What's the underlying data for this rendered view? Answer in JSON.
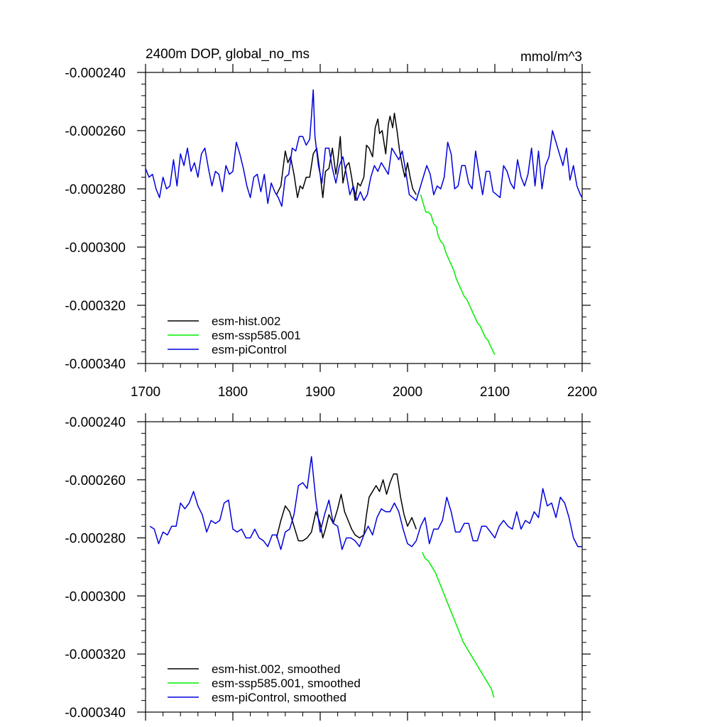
{
  "figure": {
    "title_left": "2400m DOP, global_no_ms",
    "title_right": "mmol/m^3"
  },
  "chart_data": [
    {
      "type": "line",
      "title": "2400m DOP, global_no_ms",
      "units": "mmol/m^3",
      "xlim": [
        1700,
        2200
      ],
      "ylim": [
        -0.00034,
        -0.00024
      ],
      "x_ticks": [
        1700,
        1800,
        1900,
        2000,
        2100,
        2200
      ],
      "x_tick_labels": [
        "1700",
        "1800",
        "1900",
        "2000",
        "2100",
        "2200"
      ],
      "y_ticks": [
        -0.00024,
        -0.00026,
        -0.00028,
        -0.0003,
        -0.00032,
        -0.00034
      ],
      "y_tick_labels": [
        "-0.000240",
        "-0.000260",
        "-0.000280",
        "-0.000300",
        "-0.000320",
        "-0.000340"
      ],
      "grid": false,
      "legend_position": "bottom-left",
      "series": [
        {
          "name": "esm-hist.002",
          "color": "#000000",
          "x": [
            1850,
            1855,
            1860,
            1863,
            1866,
            1870,
            1874,
            1877,
            1880,
            1884,
            1888,
            1892,
            1896,
            1900,
            1903,
            1906,
            1910,
            1914,
            1918,
            1920,
            1923,
            1926,
            1930,
            1933,
            1936,
            1940,
            1943,
            1946,
            1950,
            1953,
            1956,
            1960,
            1963,
            1966,
            1968,
            1971,
            1975,
            1978,
            1980,
            1983,
            1985,
            1988,
            1991,
            1994,
            1997,
            2000,
            2003,
            2006,
            2010
          ],
          "y": [
            -0.000282,
            -0.000279,
            -0.000267,
            -0.000271,
            -0.000269,
            -0.000275,
            -0.000283,
            -0.000279,
            -0.00028,
            -0.000276,
            -0.000276,
            -0.000268,
            -0.000266,
            -0.000275,
            -0.000283,
            -0.000274,
            -0.000273,
            -0.000266,
            -0.000275,
            -0.000271,
            -0.000262,
            -0.000278,
            -0.000272,
            -0.000271,
            -0.000276,
            -0.000284,
            -0.000278,
            -0.000279,
            -0.000276,
            -0.000265,
            -0.000266,
            -0.000269,
            -0.000259,
            -0.000256,
            -0.000261,
            -0.00026,
            -0.000268,
            -0.000258,
            -0.000255,
            -0.000259,
            -0.000254,
            -0.00026,
            -0.000267,
            -0.000272,
            -0.000276,
            -0.000271,
            -0.000276,
            -0.00028,
            -0.000282
          ]
        },
        {
          "name": "esm-ssp585.001",
          "color": "#00ee00",
          "x": [
            2015,
            2018,
            2021,
            2024,
            2027,
            2030,
            2033,
            2035,
            2038,
            2041,
            2044,
            2047,
            2050,
            2053,
            2056,
            2059,
            2062,
            2065,
            2068,
            2071,
            2074,
            2077,
            2080,
            2083,
            2086,
            2089,
            2092,
            2095,
            2100
          ],
          "y": [
            -0.000282,
            -0.000285,
            -0.000288,
            -0.000288,
            -0.000289,
            -0.000292,
            -0.000293,
            -0.000296,
            -0.000298,
            -0.000299,
            -0.000302,
            -0.000304,
            -0.000306,
            -0.000308,
            -0.000311,
            -0.000313,
            -0.000315,
            -0.000317,
            -0.000318,
            -0.00032,
            -0.000322,
            -0.000324,
            -0.000326,
            -0.000327,
            -0.000329,
            -0.000331,
            -0.000332,
            -0.000334,
            -0.000337
          ]
        },
        {
          "name": "esm-piControl",
          "color": "#0000dd",
          "x": [
            1700,
            1704,
            1708,
            1712,
            1716,
            1720,
            1724,
            1728,
            1732,
            1736,
            1740,
            1744,
            1748,
            1752,
            1756,
            1760,
            1764,
            1768,
            1772,
            1776,
            1780,
            1784,
            1788,
            1792,
            1796,
            1800,
            1804,
            1808,
            1812,
            1816,
            1820,
            1824,
            1828,
            1832,
            1836,
            1840,
            1844,
            1848,
            1852,
            1856,
            1860,
            1864,
            1868,
            1872,
            1876,
            1880,
            1884,
            1888,
            1890,
            1892,
            1894,
            1898,
            1902,
            1906,
            1910,
            1914,
            1918,
            1922,
            1926,
            1930,
            1934,
            1938,
            1942,
            1946,
            1950,
            1954,
            1958,
            1962,
            1966,
            1970,
            1974,
            1978,
            1982,
            1986,
            1990,
            1994,
            1998,
            2002,
            2006,
            2010,
            2014,
            2018,
            2022,
            2026,
            2030,
            2034,
            2038,
            2042,
            2046,
            2050,
            2054,
            2058,
            2062,
            2066,
            2070,
            2074,
            2078,
            2082,
            2086,
            2090,
            2094,
            2098,
            2102,
            2106,
            2110,
            2114,
            2118,
            2122,
            2126,
            2130,
            2134,
            2138,
            2142,
            2146,
            2150,
            2154,
            2158,
            2162,
            2166,
            2170,
            2174,
            2178,
            2182,
            2186,
            2190,
            2194,
            2198,
            2200
          ],
          "y": [
            -0.000273,
            -0.000276,
            -0.000275,
            -0.00028,
            -0.000283,
            -0.000276,
            -0.00028,
            -0.000279,
            -0.00027,
            -0.000279,
            -0.000268,
            -0.000272,
            -0.000266,
            -0.000274,
            -0.000271,
            -0.000276,
            -0.000268,
            -0.000266,
            -0.000273,
            -0.000279,
            -0.000274,
            -0.000275,
            -0.000281,
            -0.000272,
            -0.000275,
            -0.000274,
            -0.000264,
            -0.000268,
            -0.000273,
            -0.000279,
            -0.000283,
            -0.000276,
            -0.000275,
            -0.000281,
            -0.000275,
            -0.000285,
            -0.000278,
            -0.000281,
            -0.000283,
            -0.000286,
            -0.000276,
            -0.000275,
            -0.000266,
            -0.000267,
            -0.000262,
            -0.000262,
            -0.000265,
            -0.000263,
            -0.000255,
            -0.000246,
            -0.000262,
            -0.000272,
            -0.000278,
            -0.000266,
            -0.000266,
            -0.000273,
            -0.000278,
            -0.000272,
            -0.000269,
            -0.000275,
            -0.000282,
            -0.000279,
            -0.000284,
            -0.000281,
            -0.000284,
            -0.000282,
            -0.000276,
            -0.000272,
            -0.000274,
            -0.000271,
            -0.000273,
            -0.000275,
            -0.000266,
            -0.000268,
            -0.00027,
            -0.000267,
            -0.000274,
            -0.000282,
            -0.000283,
            -0.000284,
            -0.00028,
            -0.000276,
            -0.000272,
            -0.000275,
            -0.000282,
            -0.000279,
            -0.00028,
            -0.000276,
            -0.000264,
            -0.000268,
            -0.00028,
            -0.000279,
            -0.000272,
            -0.000272,
            -0.000278,
            -0.00028,
            -0.000267,
            -0.000275,
            -0.000282,
            -0.000274,
            -0.000274,
            -0.000281,
            -0.000282,
            -0.000283,
            -0.000272,
            -0.000274,
            -0.000278,
            -0.00028,
            -0.00027,
            -0.000276,
            -0.000279,
            -0.000275,
            -0.000266,
            -0.000279,
            -0.000267,
            -0.00028,
            -0.000272,
            -0.000269,
            -0.00026,
            -0.000264,
            -0.000268,
            -0.000272,
            -0.000266,
            -0.000277,
            -0.000272,
            -0.000279,
            -0.000282,
            -0.000283
          ]
        }
      ]
    },
    {
      "type": "line",
      "xlim": [
        1700,
        2200
      ],
      "ylim": [
        -0.00034,
        -0.00024
      ],
      "y_ticks": [
        -0.00024,
        -0.00026,
        -0.00028,
        -0.0003,
        -0.00032,
        -0.00034
      ],
      "y_tick_labels": [
        "-0.000240",
        "-0.000260",
        "-0.000280",
        "-0.000300",
        "-0.000320",
        "-0.000340"
      ],
      "grid": false,
      "legend_position": "bottom-left",
      "series": [
        {
          "name": "esm-hist.002, smoothed",
          "color": "#000000",
          "x": [
            1850,
            1855,
            1860,
            1865,
            1870,
            1875,
            1880,
            1885,
            1890,
            1895,
            1900,
            1903,
            1906,
            1910,
            1915,
            1920,
            1924,
            1928,
            1932,
            1936,
            1940,
            1945,
            1950,
            1953,
            1956,
            1960,
            1964,
            1968,
            1972,
            1976,
            1980,
            1984,
            1988,
            1992,
            1996,
            2000,
            2005,
            2010
          ],
          "y": [
            -0.00028,
            -0.000274,
            -0.000269,
            -0.000271,
            -0.000276,
            -0.000281,
            -0.000281,
            -0.00028,
            -0.000278,
            -0.000271,
            -0.000275,
            -0.00028,
            -0.000277,
            -0.000272,
            -0.000275,
            -0.00027,
            -0.000265,
            -0.000271,
            -0.000274,
            -0.000277,
            -0.000279,
            -0.00028,
            -0.000279,
            -0.000272,
            -0.000266,
            -0.000264,
            -0.000262,
            -0.000264,
            -0.00026,
            -0.000265,
            -0.000261,
            -0.000258,
            -0.000258,
            -0.000266,
            -0.000272,
            -0.000276,
            -0.000273,
            -0.000277
          ]
        },
        {
          "name": "esm-ssp585.001, smoothed",
          "color": "#00ee00",
          "x": [
            2017,
            2020,
            2024,
            2028,
            2032,
            2036,
            2040,
            2044,
            2048,
            2052,
            2056,
            2060,
            2064,
            2068,
            2072,
            2076,
            2080,
            2084,
            2088,
            2092,
            2096,
            2099
          ],
          "y": [
            -0.000285,
            -0.000287,
            -0.000288,
            -0.00029,
            -0.000292,
            -0.000295,
            -0.000298,
            -0.000301,
            -0.000304,
            -0.000307,
            -0.00031,
            -0.000313,
            -0.000316,
            -0.000318,
            -0.00032,
            -0.000322,
            -0.000324,
            -0.000326,
            -0.000328,
            -0.00033,
            -0.000332,
            -0.000335
          ]
        },
        {
          "name": "esm-piControl, smoothed",
          "color": "#0000dd",
          "x": [
            1705,
            1710,
            1715,
            1720,
            1725,
            1730,
            1735,
            1740,
            1745,
            1750,
            1755,
            1760,
            1765,
            1770,
            1775,
            1780,
            1785,
            1790,
            1795,
            1800,
            1805,
            1810,
            1815,
            1820,
            1825,
            1830,
            1835,
            1840,
            1845,
            1850,
            1855,
            1860,
            1865,
            1870,
            1875,
            1880,
            1885,
            1890,
            1895,
            1900,
            1905,
            1910,
            1915,
            1920,
            1925,
            1930,
            1935,
            1940,
            1945,
            1950,
            1955,
            1960,
            1965,
            1970,
            1975,
            1980,
            1985,
            1990,
            1995,
            2000,
            2005,
            2010,
            2015,
            2020,
            2025,
            2030,
            2035,
            2040,
            2045,
            2050,
            2055,
            2060,
            2065,
            2070,
            2075,
            2080,
            2085,
            2090,
            2095,
            2100,
            2105,
            2110,
            2115,
            2120,
            2125,
            2130,
            2135,
            2140,
            2145,
            2150,
            2155,
            2160,
            2165,
            2170,
            2175,
            2180,
            2185,
            2190,
            2195,
            2200
          ],
          "y": [
            -0.000276,
            -0.000277,
            -0.000282,
            -0.000278,
            -0.000279,
            -0.000276,
            -0.000276,
            -0.000268,
            -0.00027,
            -0.000268,
            -0.000264,
            -0.000269,
            -0.000272,
            -0.000278,
            -0.000274,
            -0.000275,
            -0.000274,
            -0.000268,
            -0.000267,
            -0.000277,
            -0.000278,
            -0.000277,
            -0.00028,
            -0.00028,
            -0.000277,
            -0.00028,
            -0.000281,
            -0.000283,
            -0.000279,
            -0.000279,
            -0.000284,
            -0.000278,
            -0.000277,
            -0.000272,
            -0.000262,
            -0.000261,
            -0.000263,
            -0.000252,
            -0.000267,
            -0.000278,
            -0.000272,
            -0.000267,
            -0.000275,
            -0.000276,
            -0.000284,
            -0.00028,
            -0.00028,
            -0.000281,
            -0.000283,
            -0.000279,
            -0.000276,
            -0.000279,
            -0.000273,
            -0.00027,
            -0.000271,
            -0.000271,
            -0.000268,
            -0.000271,
            -0.000277,
            -0.000282,
            -0.000283,
            -0.000281,
            -0.000276,
            -0.000273,
            -0.000282,
            -0.000277,
            -0.000277,
            -0.000274,
            -0.000266,
            -0.000271,
            -0.000278,
            -0.000278,
            -0.000275,
            -0.000275,
            -0.000281,
            -0.000281,
            -0.000276,
            -0.000276,
            -0.000278,
            -0.00028,
            -0.000276,
            -0.000274,
            -0.000276,
            -0.000277,
            -0.000271,
            -0.000277,
            -0.000274,
            -0.000275,
            -0.000271,
            -0.000273,
            -0.000263,
            -0.000269,
            -0.000268,
            -0.000273,
            -0.000266,
            -0.000268,
            -0.000273,
            -0.00028,
            -0.000283,
            -0.000283
          ]
        }
      ]
    }
  ]
}
